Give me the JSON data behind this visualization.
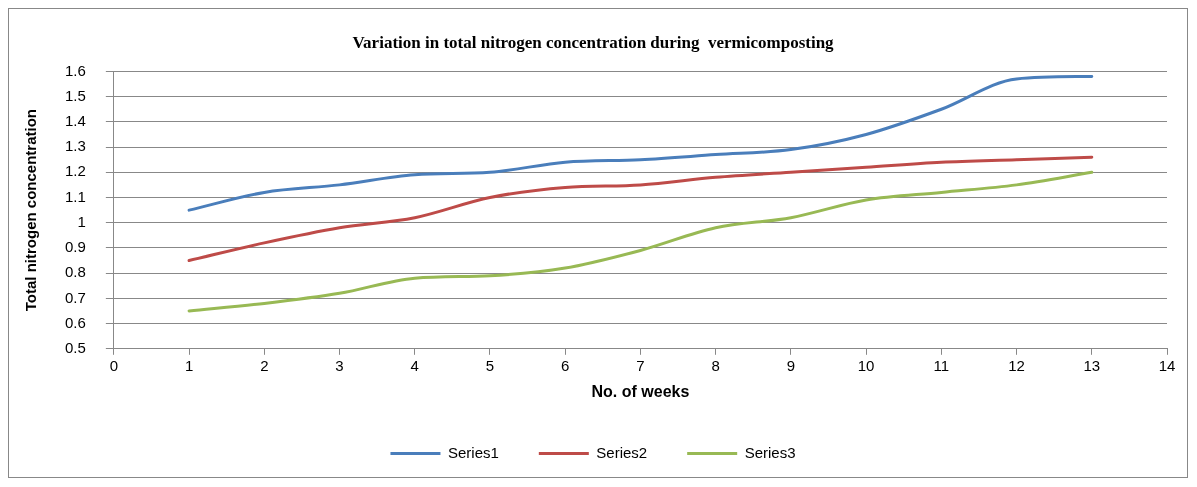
{
  "chart_data": {
    "type": "line",
    "title": "Variation in total nitrogen concentration during  vermicomposting",
    "xlabel": "No. of weeks",
    "ylabel": "Total nitrogen concentration",
    "x": [
      1,
      2,
      3,
      4,
      5,
      6,
      7,
      8,
      9,
      10,
      11,
      12,
      13
    ],
    "series": [
      {
        "name": "Series1",
        "color": "#4a7ebb",
        "values": [
          1.05,
          1.12,
          1.15,
          1.19,
          1.2,
          1.24,
          1.25,
          1.27,
          1.29,
          1.35,
          1.45,
          1.57,
          1.58
        ]
      },
      {
        "name": "Series2",
        "color": "#be4b48",
        "values": [
          0.85,
          0.92,
          0.98,
          1.02,
          1.1,
          1.14,
          1.15,
          1.18,
          1.2,
          1.22,
          1.24,
          1.25,
          1.26
        ]
      },
      {
        "name": "Series3",
        "color": "#98b954",
        "values": [
          0.65,
          0.68,
          0.72,
          0.78,
          0.79,
          0.82,
          0.89,
          0.98,
          1.02,
          1.09,
          1.12,
          1.15,
          1.2
        ]
      }
    ],
    "xlim": [
      0,
      14
    ],
    "xticks": [
      0,
      1,
      2,
      3,
      4,
      5,
      6,
      7,
      8,
      9,
      10,
      11,
      12,
      13,
      14
    ],
    "ylim": [
      0.5,
      1.6
    ],
    "yticks": [
      0.5,
      0.6,
      0.7,
      0.8,
      0.9,
      1,
      1.1,
      1.2,
      1.3,
      1.4,
      1.5,
      1.6
    ],
    "grid": "y",
    "legend": "bottom",
    "marker": "none",
    "line_style": "solid"
  }
}
